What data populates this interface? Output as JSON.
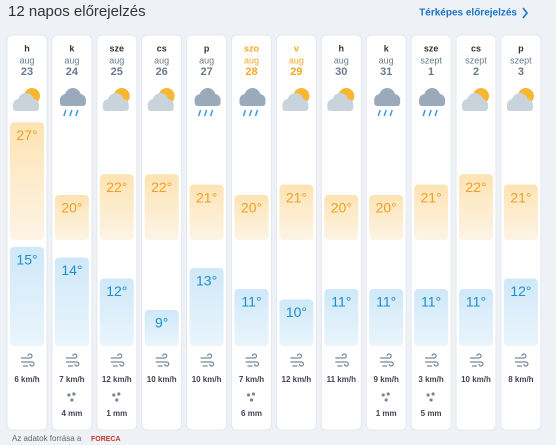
{
  "header": {
    "title": "12 napos előrejelzés",
    "link": "Térképes előrejelzés"
  },
  "days": [
    {
      "day": "h",
      "month": "aug",
      "date": "23",
      "weekend": false,
      "icon": "partly-cloudy",
      "max": {
        "value": 27,
        "label": "27°"
      },
      "min": {
        "value": 15,
        "label": "15°"
      },
      "wind": "6 km/h",
      "rain": null
    },
    {
      "day": "k",
      "month": "aug",
      "date": "24",
      "weekend": false,
      "icon": "rain",
      "max": {
        "value": 20,
        "label": "20°"
      },
      "min": {
        "value": 14,
        "label": "14°"
      },
      "wind": "7 km/h",
      "rain": "4 mm"
    },
    {
      "day": "sze",
      "month": "aug",
      "date": "25",
      "weekend": false,
      "icon": "partly-cloudy",
      "max": {
        "value": 22,
        "label": "22°"
      },
      "min": {
        "value": 12,
        "label": "12°"
      },
      "wind": "12 km/h",
      "rain": "1 mm"
    },
    {
      "day": "cs",
      "month": "aug",
      "date": "26",
      "weekend": false,
      "icon": "partly-cloudy",
      "max": {
        "value": 22,
        "label": "22°"
      },
      "min": {
        "value": 9,
        "label": "9°"
      },
      "wind": "10 km/h",
      "rain": null
    },
    {
      "day": "p",
      "month": "aug",
      "date": "27",
      "weekend": false,
      "icon": "rain",
      "max": {
        "value": 21,
        "label": "21°"
      },
      "min": {
        "value": 13,
        "label": "13°"
      },
      "wind": "10 km/h",
      "rain": null
    },
    {
      "day": "szo",
      "month": "aug",
      "date": "28",
      "weekend": true,
      "icon": "rain",
      "max": {
        "value": 20,
        "label": "20°"
      },
      "min": {
        "value": 11,
        "label": "11°"
      },
      "wind": "7 km/h",
      "rain": "6 mm"
    },
    {
      "day": "v",
      "month": "aug",
      "date": "29",
      "weekend": true,
      "icon": "partly-cloudy",
      "max": {
        "value": 21,
        "label": "21°"
      },
      "min": {
        "value": 10,
        "label": "10°"
      },
      "wind": "12 km/h",
      "rain": null
    },
    {
      "day": "h",
      "month": "aug",
      "date": "30",
      "weekend": false,
      "icon": "partly-cloudy",
      "max": {
        "value": 20,
        "label": "20°"
      },
      "min": {
        "value": 11,
        "label": "11°"
      },
      "wind": "11 km/h",
      "rain": null
    },
    {
      "day": "k",
      "month": "aug",
      "date": "31",
      "weekend": false,
      "icon": "rain",
      "max": {
        "value": 20,
        "label": "20°"
      },
      "min": {
        "value": 11,
        "label": "11°"
      },
      "wind": "9 km/h",
      "rain": "1 mm"
    },
    {
      "day": "sze",
      "month": "szept",
      "date": "1",
      "weekend": false,
      "icon": "rain",
      "max": {
        "value": 21,
        "label": "21°"
      },
      "min": {
        "value": 11,
        "label": "11°"
      },
      "wind": "3 km/h",
      "rain": "5 mm"
    },
    {
      "day": "cs",
      "month": "szept",
      "date": "2",
      "weekend": false,
      "icon": "partly-cloudy",
      "max": {
        "value": 22,
        "label": "22°"
      },
      "min": {
        "value": 11,
        "label": "11°"
      },
      "wind": "10 km/h",
      "rain": null
    },
    {
      "day": "p",
      "month": "szept",
      "date": "3",
      "weekend": false,
      "icon": "partly-cloudy",
      "max": {
        "value": 21,
        "label": "21°"
      },
      "min": {
        "value": 12,
        "label": "12°"
      },
      "wind": "8 km/h",
      "rain": null
    }
  ],
  "footer": {
    "text": "Az adatok forrása a",
    "brand": "FORECA"
  }
}
